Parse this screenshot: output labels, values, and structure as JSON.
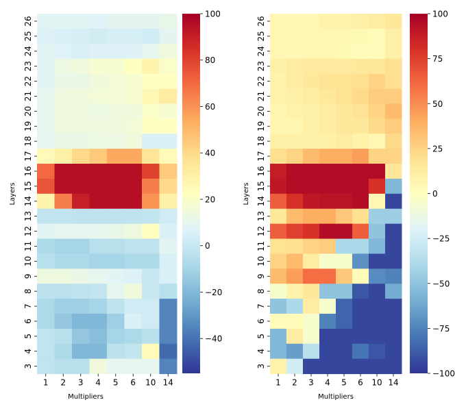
{
  "chart_data": [
    {
      "type": "heatmap",
      "title": "",
      "xlabel": "Multipliers",
      "ylabel": "Layers",
      "x_categories": [
        "1",
        "2",
        "3",
        "4",
        "5",
        "6",
        "10",
        "14"
      ],
      "y_categories": [
        "26",
        "25",
        "24",
        "23",
        "22",
        "21",
        "20",
        "19",
        "18",
        "17",
        "16",
        "15",
        "14",
        "13",
        "12",
        "11",
        "10",
        "9",
        "8",
        "7",
        "6",
        "5",
        "4",
        "3"
      ],
      "colormap": "RdYlBu_r",
      "vmin": -55,
      "vmax": 100,
      "colorbar_ticks": [
        100,
        80,
        60,
        40,
        20,
        0,
        -20,
        -40
      ],
      "colorbar_tick_labels": [
        "100",
        "80",
        "60",
        "40",
        "20",
        "0",
        "−20",
        "−40"
      ],
      "values": [
        [
          8,
          8,
          8,
          7,
          9,
          9,
          9,
          11
        ],
        [
          6,
          5,
          4,
          3,
          4,
          4,
          2,
          9
        ],
        [
          8,
          7,
          5,
          6,
          6,
          6,
          10,
          15
        ],
        [
          8,
          13,
          15,
          18,
          18,
          22,
          28,
          20
        ],
        [
          8,
          12,
          12,
          15,
          16,
          18,
          22,
          22
        ],
        [
          10,
          14,
          15,
          16,
          16,
          18,
          26,
          32
        ],
        [
          10,
          14,
          14,
          13,
          14,
          15,
          20,
          18
        ],
        [
          10,
          14,
          14,
          14,
          15,
          16,
          22,
          22
        ],
        [
          10,
          12,
          12,
          13,
          13,
          15,
          5,
          5
        ],
        [
          25,
          30,
          40,
          45,
          55,
          55,
          35,
          25
        ],
        [
          70,
          95,
          95,
          95,
          95,
          95,
          80,
          45
        ],
        [
          75,
          95,
          95,
          95,
          95,
          95,
          65,
          40
        ],
        [
          28,
          65,
          90,
          95,
          95,
          95,
          60,
          30
        ],
        [
          -2,
          -2,
          -3,
          -3,
          -3,
          -3,
          -2,
          2
        ],
        [
          8,
          10,
          10,
          10,
          11,
          14,
          22,
          5
        ],
        [
          -8,
          -10,
          -10,
          -5,
          -5,
          -3,
          -3,
          8
        ],
        [
          -5,
          -8,
          -8,
          -10,
          -10,
          -8,
          -8,
          5
        ],
        [
          14,
          14,
          12,
          10,
          8,
          6,
          0,
          5
        ],
        [
          -4,
          -4,
          -3,
          -2,
          10,
          15,
          0,
          -5
        ],
        [
          -8,
          -12,
          -12,
          -10,
          -3,
          2,
          2,
          -35
        ],
        [
          -8,
          -15,
          -20,
          -20,
          -12,
          5,
          2,
          -35
        ],
        [
          -2,
          -5,
          -15,
          -18,
          -10,
          -8,
          -5,
          -35
        ],
        [
          -2,
          -8,
          -20,
          -20,
          -4,
          -2,
          25,
          -42
        ],
        [
          -2,
          -5,
          -5,
          15,
          10,
          10,
          10,
          -35
        ]
      ]
    },
    {
      "type": "heatmap",
      "title": "",
      "xlabel": "Multipliers",
      "ylabel": "Layers",
      "x_categories": [
        "1",
        "2",
        "3",
        "4",
        "5",
        "6",
        "10",
        "14"
      ],
      "y_categories": [
        "26",
        "25",
        "24",
        "23",
        "22",
        "21",
        "20",
        "19",
        "18",
        "17",
        "16",
        "15",
        "14",
        "13",
        "12",
        "11",
        "10",
        "9",
        "8",
        "7",
        "6",
        "5",
        "4",
        "3"
      ],
      "colormap": "RdYlBu_r",
      "vmin": -100,
      "vmax": 100,
      "colorbar_ticks": [
        100,
        75,
        50,
        25,
        0,
        -25,
        -50,
        -75,
        -100
      ],
      "colorbar_tick_labels": [
        "100",
        "75",
        "50",
        "25",
        "0",
        "−25",
        "−50",
        "−75",
        "−100"
      ],
      "values": [
        [
          5,
          5,
          5,
          8,
          8,
          10,
          12,
          15
        ],
        [
          5,
          5,
          5,
          5,
          5,
          4,
          2,
          10
        ],
        [
          5,
          5,
          5,
          5,
          4,
          2,
          2,
          10
        ],
        [
          10,
          12,
          14,
          14,
          14,
          15,
          15,
          20
        ],
        [
          8,
          12,
          15,
          18,
          18,
          20,
          25,
          20
        ],
        [
          8,
          10,
          12,
          15,
          18,
          22,
          28,
          28
        ],
        [
          6,
          8,
          10,
          12,
          15,
          18,
          25,
          35
        ],
        [
          6,
          6,
          10,
          12,
          15,
          15,
          22,
          28
        ],
        [
          10,
          10,
          10,
          10,
          12,
          8,
          5,
          22
        ],
        [
          20,
          25,
          35,
          40,
          40,
          45,
          25,
          25
        ],
        [
          88,
          95,
          95,
          95,
          95,
          95,
          95,
          15
        ],
        [
          90,
          95,
          95,
          95,
          95,
          95,
          80,
          -55
        ],
        [
          65,
          80,
          90,
          92,
          92,
          95,
          5,
          -95
        ],
        [
          15,
          35,
          40,
          40,
          30,
          20,
          -45,
          -45
        ],
        [
          65,
          75,
          80,
          95,
          95,
          65,
          -50,
          -95
        ],
        [
          18,
          20,
          25,
          28,
          -40,
          -40,
          -55,
          -95
        ],
        [
          25,
          35,
          12,
          -5,
          -5,
          -70,
          -95,
          -95
        ],
        [
          35,
          45,
          60,
          60,
          30,
          2,
          -72,
          -75
        ],
        [
          -5,
          8,
          15,
          -50,
          -50,
          -90,
          -95,
          -60
        ],
        [
          -50,
          -40,
          12,
          -5,
          -85,
          -95,
          -95,
          -95
        ],
        [
          2,
          2,
          -5,
          -75,
          -85,
          -95,
          -95,
          -95
        ],
        [
          -55,
          12,
          -5,
          -95,
          -95,
          -95,
          -95,
          -95
        ],
        [
          -55,
          -65,
          -35,
          -95,
          -95,
          -80,
          -90,
          -95
        ],
        [
          8,
          -25,
          -95,
          -95,
          -95,
          -95,
          -95,
          -95
        ]
      ]
    }
  ]
}
